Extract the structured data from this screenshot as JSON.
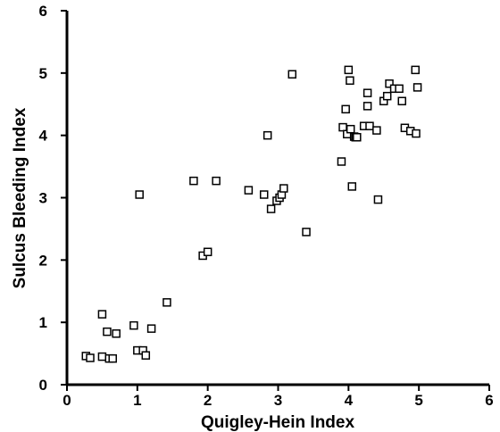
{
  "chart_data": {
    "type": "scatter",
    "xlabel": "Quigley-Hein  Index",
    "ylabel": "Sulcus  Bleeding  Index",
    "xlim": [
      0,
      6
    ],
    "ylim": [
      0,
      6
    ],
    "x_ticks": [
      "0",
      "1",
      "2",
      "3",
      "4",
      "5",
      "6"
    ],
    "y_ticks": [
      "0",
      "1",
      "2",
      "3",
      "4",
      "5",
      "6"
    ],
    "grid": false,
    "marker": "open-square",
    "points": [
      {
        "x": 0.27,
        "y": 0.46
      },
      {
        "x": 0.33,
        "y": 0.43
      },
      {
        "x": 0.5,
        "y": 0.45
      },
      {
        "x": 0.6,
        "y": 0.42
      },
      {
        "x": 0.65,
        "y": 0.42
      },
      {
        "x": 0.5,
        "y": 1.13
      },
      {
        "x": 0.57,
        "y": 0.85
      },
      {
        "x": 0.7,
        "y": 0.82
      },
      {
        "x": 0.95,
        "y": 0.95
      },
      {
        "x": 1.0,
        "y": 0.55
      },
      {
        "x": 1.08,
        "y": 0.55
      },
      {
        "x": 1.12,
        "y": 0.47
      },
      {
        "x": 1.2,
        "y": 0.9
      },
      {
        "x": 1.42,
        "y": 1.32
      },
      {
        "x": 1.03,
        "y": 3.05
      },
      {
        "x": 1.8,
        "y": 3.27
      },
      {
        "x": 1.93,
        "y": 2.07
      },
      {
        "x": 2.0,
        "y": 2.13
      },
      {
        "x": 2.12,
        "y": 3.27
      },
      {
        "x": 2.58,
        "y": 3.12
      },
      {
        "x": 2.8,
        "y": 3.05
      },
      {
        "x": 2.85,
        "y": 4.0
      },
      {
        "x": 2.9,
        "y": 2.82
      },
      {
        "x": 2.98,
        "y": 2.95
      },
      {
        "x": 3.02,
        "y": 3.0
      },
      {
        "x": 3.05,
        "y": 3.05
      },
      {
        "x": 3.08,
        "y": 3.15
      },
      {
        "x": 3.2,
        "y": 4.98
      },
      {
        "x": 3.4,
        "y": 2.45
      },
      {
        "x": 3.9,
        "y": 3.58
      },
      {
        "x": 3.92,
        "y": 4.13
      },
      {
        "x": 3.96,
        "y": 4.42
      },
      {
        "x": 3.98,
        "y": 4.02
      },
      {
        "x": 4.0,
        "y": 5.05
      },
      {
        "x": 4.02,
        "y": 4.88
      },
      {
        "x": 4.03,
        "y": 4.1
      },
      {
        "x": 4.05,
        "y": 3.18
      },
      {
        "x": 4.08,
        "y": 3.98
      },
      {
        "x": 4.1,
        "y": 3.97
      },
      {
        "x": 4.12,
        "y": 3.97
      },
      {
        "x": 4.22,
        "y": 4.15
      },
      {
        "x": 4.27,
        "y": 4.68
      },
      {
        "x": 4.27,
        "y": 4.47
      },
      {
        "x": 4.3,
        "y": 4.15
      },
      {
        "x": 4.4,
        "y": 4.08
      },
      {
        "x": 4.42,
        "y": 2.97
      },
      {
        "x": 4.5,
        "y": 4.55
      },
      {
        "x": 4.55,
        "y": 4.63
      },
      {
        "x": 4.58,
        "y": 4.83
      },
      {
        "x": 4.65,
        "y": 4.75
      },
      {
        "x": 4.72,
        "y": 4.75
      },
      {
        "x": 4.76,
        "y": 4.55
      },
      {
        "x": 4.8,
        "y": 4.12
      },
      {
        "x": 4.88,
        "y": 4.07
      },
      {
        "x": 4.95,
        "y": 5.05
      },
      {
        "x": 4.96,
        "y": 4.03
      },
      {
        "x": 4.98,
        "y": 4.77
      }
    ]
  }
}
